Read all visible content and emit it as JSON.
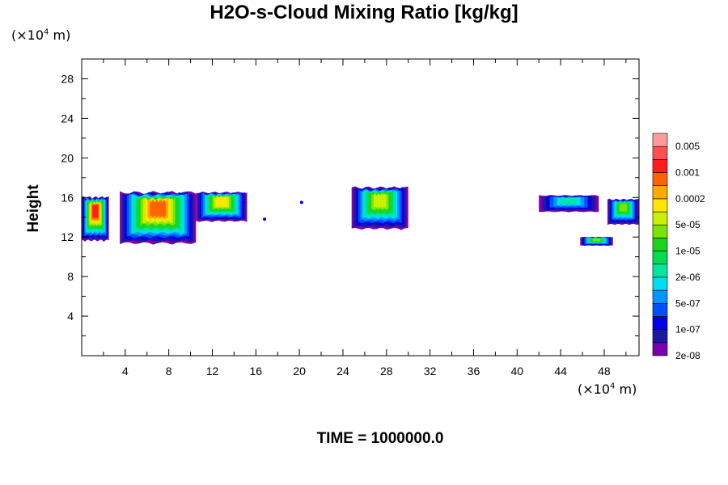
{
  "chart_data": {
    "type": "heatmap",
    "title": "H2O-s-Cloud Mixing Ratio [kg/kg]",
    "xlabel": "",
    "ylabel": "Height",
    "x_unit_prefix": "(×10",
    "x_unit_exp": "4",
    "x_unit_suffix": " m)",
    "y_unit_prefix": "(×10",
    "y_unit_exp": "4",
    "y_unit_suffix": " m)",
    "xlim": [
      0,
      51.2
    ],
    "ylim": [
      0,
      30
    ],
    "x_ticks": [
      4,
      8,
      12,
      16,
      20,
      24,
      28,
      32,
      36,
      40,
      44,
      48
    ],
    "x_tick_labels": [
      "4",
      "8",
      "12",
      "16",
      "20",
      "24",
      "28",
      "32",
      "36",
      "40",
      "44",
      "48"
    ],
    "y_ticks": [
      4,
      8,
      12,
      16,
      20,
      24,
      28
    ],
    "y_tick_labels": [
      "4",
      "8",
      "12",
      "16",
      "20",
      "24",
      "28"
    ],
    "grid": false,
    "colorbar": {
      "labels": [
        "0.005",
        "0.001",
        "0.0002",
        "5e-05",
        "1e-05",
        "2e-06",
        "5e-07",
        "1e-07",
        "2e-08"
      ],
      "colors": [
        "#7a00b0",
        "#1a1aa0",
        "#0000e6",
        "#0050ff",
        "#0096ff",
        "#00dcf0",
        "#00e6a0",
        "#00dc50",
        "#1ed21e",
        "#78e600",
        "#c8f000",
        "#ffe600",
        "#ffaa00",
        "#ff6400",
        "#ff1e1e",
        "#ff5050",
        "#ff9b9b"
      ]
    },
    "clouds": [
      {
        "x": [
          0,
          2.5
        ],
        "top": 16.0,
        "bottom": 11.5,
        "max_level": 14
      },
      {
        "x": [
          3.5,
          10.5
        ],
        "top": 16.5,
        "bottom": 11.2,
        "max_level": 13
      },
      {
        "x": [
          10.5,
          15.2
        ],
        "top": 16.5,
        "bottom": 13.5,
        "max_level": 11
      },
      {
        "x": [
          24.8,
          30.0
        ],
        "top": 17.0,
        "bottom": 12.7,
        "max_level": 10
      },
      {
        "x": [
          42.0,
          47.5
        ],
        "top": 16.2,
        "bottom": 14.5,
        "max_level": 6
      },
      {
        "x": [
          45.8,
          48.8
        ],
        "top": 12.0,
        "bottom": 11.1,
        "max_level": 9
      },
      {
        "x": [
          48.3,
          51.2
        ],
        "top": 15.8,
        "bottom": 13.2,
        "max_level": 9
      }
    ],
    "specks": [
      [
        16.8,
        13.8
      ],
      [
        20.2,
        15.5
      ],
      [
        14.8,
        15.5
      ]
    ]
  },
  "footer": {
    "time_label": "TIME = 1000000.0"
  }
}
